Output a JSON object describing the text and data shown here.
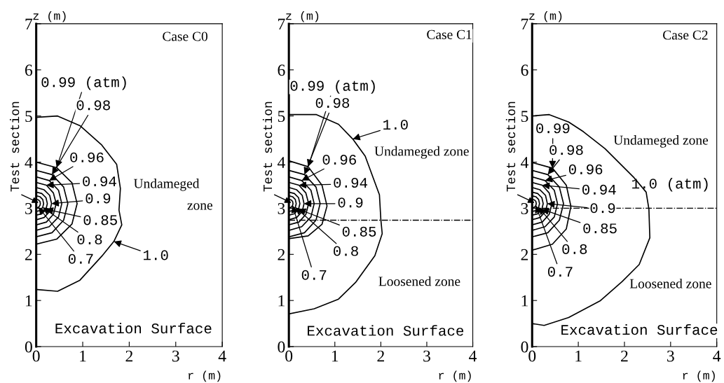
{
  "chart_data": [
    {
      "type": "line",
      "xlabel": "r (m)",
      "ylabel": "z (m)",
      "xlim": [
        0,
        4
      ],
      "ylim": [
        0,
        7
      ],
      "xticks": [
        0,
        1,
        2,
        3,
        4
      ],
      "yticks": [
        0,
        1,
        2,
        3,
        4,
        5,
        6,
        7
      ],
      "grid": false,
      "legend": false,
      "marker": "none",
      "line_style": "solid",
      "series": [
        {
          "color": "#000000",
          "x": [
            0,
            0.44,
            0.77,
            0.88,
            0.77,
            0.44,
            0
          ],
          "values": [
            4.0,
            3.88,
            3.55,
            3.1,
            2.66,
            2.33,
            2.22
          ]
        },
        {
          "color": "#000000",
          "x": [
            0,
            0.34,
            0.59,
            0.68,
            0.59,
            0.34,
            0
          ],
          "values": [
            3.82,
            3.73,
            3.46,
            3.1,
            2.74,
            2.47,
            2.38
          ]
        },
        {
          "color": "#000000",
          "x": [
            0,
            0.28,
            0.48,
            0.55,
            0.48,
            0.28,
            0
          ],
          "values": [
            3.68,
            3.6,
            3.39,
            3.1,
            2.81,
            2.6,
            2.52
          ]
        },
        {
          "color": "#000000",
          "x": [
            0,
            0.22,
            0.37,
            0.43,
            0.37,
            0.22,
            0
          ],
          "values": [
            3.56,
            3.5,
            3.33,
            3.1,
            2.87,
            2.7,
            2.64
          ]
        },
        {
          "color": "#000000",
          "x": [
            0,
            0.17,
            0.29,
            0.33,
            0.29,
            0.17,
            0
          ],
          "values": [
            3.45,
            3.4,
            3.28,
            3.1,
            2.93,
            2.8,
            2.75
          ]
        },
        {
          "color": "#000000",
          "x": [
            0,
            0.12,
            0.21,
            0.24,
            0.21,
            0.12,
            0
          ],
          "values": [
            3.35,
            3.32,
            3.23,
            3.1,
            2.98,
            2.88,
            2.85
          ]
        },
        {
          "color": "#000000",
          "x": [
            0,
            0.08,
            0.14,
            0.16,
            0.14,
            0.08,
            0
          ],
          "values": [
            3.27,
            3.25,
            3.19,
            3.1,
            3.02,
            2.95,
            2.93
          ]
        },
        {
          "color": "#000000",
          "x": [
            0,
            0.05,
            0.08,
            0.09,
            0.08,
            0.05,
            0
          ],
          "values": [
            3.19,
            3.18,
            3.15,
            3.1,
            3.06,
            3.02,
            3.01
          ]
        },
        {
          "color": "#000000",
          "x": [
            0,
            0.46,
            0.94,
            1.41,
            1.73,
            1.81,
            1.78,
            1.84,
            1.67,
            1.41,
            0.94,
            0.46,
            0
          ],
          "values": [
            4.97,
            5.0,
            4.79,
            4.37,
            3.95,
            3.43,
            2.96,
            2.64,
            2.28,
            1.96,
            1.44,
            1.2,
            1.24
          ]
        }
      ],
      "annotations": [
        {
          "text": "0.99 (atm)",
          "x": 0.44,
          "y": 3.88
        },
        {
          "text": "0.98",
          "x": 0.34,
          "y": 3.73
        },
        {
          "text": "0.96",
          "x": 0.28,
          "y": 3.6
        },
        {
          "text": "0.94",
          "x": 0.22,
          "y": 3.5
        },
        {
          "text": "0.9",
          "x": 0.33,
          "y": 3.1
        },
        {
          "text": "0.85",
          "x": 0.21,
          "y": 2.98
        },
        {
          "text": "0.8",
          "x": 0.14,
          "y": 3.02
        },
        {
          "text": "0.7",
          "x": 0.05,
          "y": 3.02
        },
        {
          "text": "1.0",
          "x": 1.67,
          "y": 2.28
        },
        {
          "text": "Test section",
          "x": 0.09,
          "y": 3.1
        },
        "Undameged",
        "zone",
        "Case C0",
        "Excavation Surface"
      ]
    },
    {
      "type": "line",
      "xlabel": "r (m)",
      "ylabel": "z (m)",
      "xlim": [
        0,
        4
      ],
      "ylim": [
        0,
        7
      ],
      "xticks": [
        0,
        1,
        2,
        3,
        4
      ],
      "yticks": [
        0,
        1,
        2,
        3,
        4,
        5,
        6,
        7
      ],
      "grid": false,
      "legend": false,
      "marker": "none",
      "line_style": "solid",
      "ref_lines": [
        {
          "axis": "y",
          "value": 2.74,
          "color": "#000000",
          "line_style": "dashdot"
        }
      ],
      "series": [
        {
          "color": "#000000",
          "x": [
            0,
            0.42,
            0.72,
            0.83,
            0.72,
            0.42,
            0
          ],
          "values": [
            4.03,
            3.9,
            3.5,
            3.05,
            2.65,
            2.4,
            2.34
          ]
        },
        {
          "color": "#000000",
          "x": [
            0,
            0.34,
            0.59,
            0.68,
            0.59,
            0.34,
            0
          ],
          "values": [
            3.82,
            3.73,
            3.46,
            3.1,
            2.74,
            2.47,
            2.38
          ]
        },
        {
          "color": "#000000",
          "x": [
            0,
            0.28,
            0.48,
            0.55,
            0.48,
            0.28,
            0
          ],
          "values": [
            3.68,
            3.6,
            3.39,
            3.1,
            2.81,
            2.6,
            2.52
          ]
        },
        {
          "color": "#000000",
          "x": [
            0,
            0.22,
            0.37,
            0.43,
            0.37,
            0.22,
            0
          ],
          "values": [
            3.56,
            3.5,
            3.33,
            3.1,
            2.87,
            2.7,
            2.64
          ]
        },
        {
          "color": "#000000",
          "x": [
            0,
            0.17,
            0.29,
            0.33,
            0.29,
            0.17,
            0
          ],
          "values": [
            3.45,
            3.4,
            3.28,
            3.1,
            2.93,
            2.8,
            2.75
          ]
        },
        {
          "color": "#000000",
          "x": [
            0,
            0.12,
            0.21,
            0.24,
            0.21,
            0.12,
            0
          ],
          "values": [
            3.35,
            3.32,
            3.23,
            3.1,
            2.98,
            2.88,
            2.85
          ]
        },
        {
          "color": "#000000",
          "x": [
            0,
            0.08,
            0.14,
            0.16,
            0.14,
            0.08,
            0
          ],
          "values": [
            3.27,
            3.25,
            3.19,
            3.1,
            3.02,
            2.95,
            2.93
          ]
        },
        {
          "color": "#000000",
          "x": [
            0,
            0.05,
            0.08,
            0.09,
            0.08,
            0.05,
            0
          ],
          "values": [
            3.19,
            3.18,
            3.15,
            3.1,
            3.06,
            3.02,
            3.01
          ]
        },
        {
          "color": "#000000",
          "x": [
            0,
            0.6,
            1.08,
            1.39,
            1.66,
            1.97,
            2.0,
            2.03,
            1.87,
            1.45,
            1.08,
            0.55,
            0
          ],
          "values": [
            5.03,
            5.03,
            4.82,
            4.5,
            4.13,
            3.29,
            2.76,
            2.45,
            1.97,
            1.39,
            1.03,
            0.82,
            0.71
          ]
        }
      ],
      "annotations": [
        {
          "text": "0.99 (atm)",
          "x": 0.42,
          "y": 3.9
        },
        {
          "text": "0.98",
          "x": 0.34,
          "y": 3.73
        },
        {
          "text": "0.96",
          "x": 0.28,
          "y": 3.6
        },
        {
          "text": "0.94",
          "x": 0.22,
          "y": 3.5
        },
        {
          "text": "0.9",
          "x": 0.33,
          "y": 3.1
        },
        {
          "text": "0.85",
          "x": 0.21,
          "y": 2.98
        },
        {
          "text": "0.8",
          "x": 0.14,
          "y": 3.02
        },
        {
          "text": "0.7",
          "x": 0.08,
          "y": 3.06
        },
        {
          "text": "1.0",
          "x": 1.39,
          "y": 4.5
        },
        {
          "text": "Test section",
          "x": 0.09,
          "y": 3.1
        },
        "Undameged zone",
        "Loosened zone",
        "Case C1",
        "Excavation Surface"
      ]
    },
    {
      "type": "line",
      "xlabel": "r (m)",
      "ylabel": "z (m)",
      "xlim": [
        0,
        4
      ],
      "ylim": [
        0,
        7
      ],
      "xticks": [
        0,
        1,
        2,
        3,
        4
      ],
      "yticks": [
        0,
        1,
        2,
        3,
        4,
        5,
        6,
        7
      ],
      "grid": false,
      "legend": false,
      "marker": "none",
      "line_style": "solid",
      "ref_lines": [
        {
          "axis": "y",
          "value": 3.0,
          "color": "#000000",
          "line_style": "dashdot"
        }
      ],
      "series": [
        {
          "color": "#000000",
          "x": [
            0,
            0.44,
            0.74,
            0.84,
            0.74,
            0.44,
            0
          ],
          "values": [
            3.99,
            3.87,
            3.5,
            3.04,
            2.55,
            2.22,
            2.09
          ]
        },
        {
          "color": "#000000",
          "x": [
            0,
            0.34,
            0.59,
            0.68,
            0.59,
            0.34,
            0
          ],
          "values": [
            3.82,
            3.73,
            3.46,
            3.1,
            2.74,
            2.47,
            2.38
          ]
        },
        {
          "color": "#000000",
          "x": [
            0,
            0.28,
            0.48,
            0.55,
            0.48,
            0.28,
            0
          ],
          "values": [
            3.68,
            3.6,
            3.39,
            3.1,
            2.81,
            2.6,
            2.52
          ]
        },
        {
          "color": "#000000",
          "x": [
            0,
            0.22,
            0.37,
            0.43,
            0.37,
            0.22,
            0
          ],
          "values": [
            3.56,
            3.5,
            3.33,
            3.1,
            2.87,
            2.7,
            2.64
          ]
        },
        {
          "color": "#000000",
          "x": [
            0,
            0.17,
            0.29,
            0.33,
            0.29,
            0.17,
            0
          ],
          "values": [
            3.45,
            3.4,
            3.28,
            3.1,
            2.93,
            2.8,
            2.75
          ]
        },
        {
          "color": "#000000",
          "x": [
            0,
            0.12,
            0.21,
            0.24,
            0.21,
            0.12,
            0
          ],
          "values": [
            3.35,
            3.32,
            3.23,
            3.1,
            2.98,
            2.88,
            2.85
          ]
        },
        {
          "color": "#000000",
          "x": [
            0,
            0.08,
            0.14,
            0.16,
            0.14,
            0.08,
            0
          ],
          "values": [
            3.27,
            3.25,
            3.19,
            3.1,
            3.02,
            2.95,
            2.93
          ]
        },
        {
          "color": "#000000",
          "x": [
            0,
            0.05,
            0.08,
            0.09,
            0.08,
            0.05,
            0
          ],
          "values": [
            3.19,
            3.18,
            3.15,
            3.1,
            3.06,
            3.02,
            3.01
          ]
        },
        {
          "color": "#000000",
          "x": [
            0,
            0.37,
            0.79,
            1.11,
            1.58,
            2.21,
            2.47,
            2.53,
            2.55,
            2.32,
            1.95,
            1.47,
            0.79,
            0.26,
            0
          ],
          "values": [
            5.0,
            5.03,
            4.87,
            4.66,
            4.29,
            3.66,
            3.35,
            2.98,
            2.36,
            1.78,
            1.41,
            0.99,
            0.63,
            0.46,
            0.5
          ]
        }
      ],
      "annotations": [
        {
          "text": "0.99",
          "x": 0.44,
          "y": 3.87
        },
        {
          "text": "0.98",
          "x": 0.34,
          "y": 3.73
        },
        {
          "text": "0.96",
          "x": 0.28,
          "y": 3.6
        },
        {
          "text": "0.94",
          "x": 0.22,
          "y": 3.5
        },
        {
          "text": "0.9",
          "x": 0.33,
          "y": 3.1
        },
        {
          "text": "0.85",
          "x": 0.21,
          "y": 2.98
        },
        {
          "text": "0.8",
          "x": 0.14,
          "y": 3.02
        },
        {
          "text": "0.7",
          "x": 0.08,
          "y": 3.06
        },
        "1.0 (atm)",
        {
          "text": "Test section",
          "x": 0.09,
          "y": 3.1
        },
        "Undameged zone",
        "Loosened zone",
        "Case C2",
        "Excavation Surface"
      ]
    }
  ]
}
